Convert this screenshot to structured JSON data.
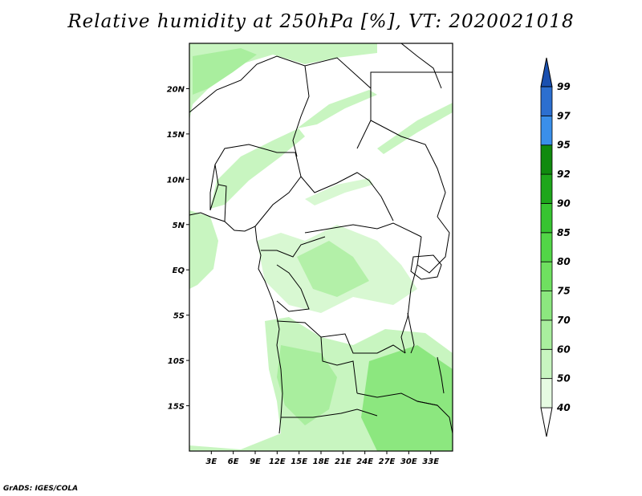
{
  "title": "Relative humidity at 250hPa [%], VT: 2020021018",
  "credit": "GrADS: IGES/COLA",
  "map": {
    "lon_range": [
      0,
      36
    ],
    "lat_range": [
      -20,
      25
    ],
    "lon_ticks": [
      "3E",
      "6E",
      "9E",
      "12E",
      "15E",
      "18E",
      "21E",
      "24E",
      "27E",
      "30E",
      "33E"
    ],
    "lat_ticks": [
      "20N",
      "15N",
      "10N",
      "5N",
      "EQ",
      "5S",
      "10S",
      "15S"
    ]
  },
  "colorbar": {
    "levels": [
      "40",
      "50",
      "60",
      "70",
      "75",
      "80",
      "85",
      "90",
      "92",
      "95",
      "97",
      "99"
    ],
    "colors": [
      "#ffffff",
      "#e6fbe2",
      "#c8f5c0",
      "#a9ee9e",
      "#8ce77f",
      "#6fe060",
      "#52d647",
      "#37c431",
      "#1ea61b",
      "#108a0f",
      "#3a8fea",
      "#2c6fd0",
      "#1a50b0"
    ]
  },
  "chart_data": {
    "type": "heatmap",
    "title": "Relative humidity at 250hPa [%], VT: 2020021018",
    "x_ticks": [
      "3E",
      "6E",
      "9E",
      "12E",
      "15E",
      "18E",
      "21E",
      "24E",
      "27E",
      "30E",
      "33E"
    ],
    "y_ticks": [
      "20N",
      "15N",
      "10N",
      "5N",
      "EQ",
      "5S",
      "10S",
      "15S"
    ],
    "color_levels": [
      40,
      50,
      60,
      70,
      75,
      80,
      85,
      90,
      92,
      95,
      97,
      99
    ],
    "xlim": [
      0,
      36
    ],
    "ylim": [
      -20,
      25
    ]
  }
}
